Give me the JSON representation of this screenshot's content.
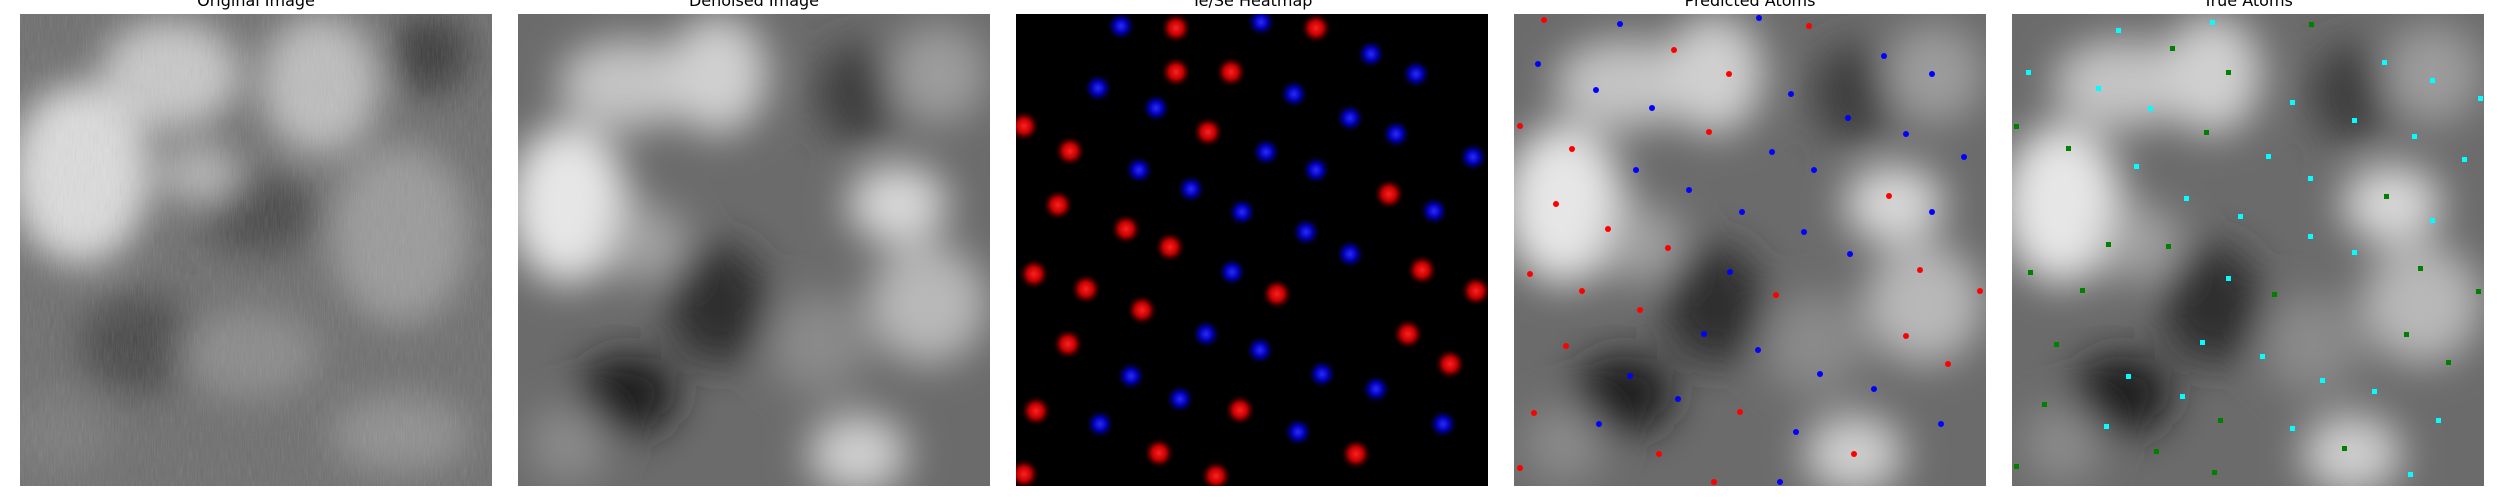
{
  "panels": [
    {
      "title": "Original Image",
      "kind": "grayscale-micrograph"
    },
    {
      "title": "Denoised Image",
      "kind": "grayscale-micrograph"
    },
    {
      "title": "Te/Se Heatmap",
      "kind": "heatmap"
    },
    {
      "title": "Predicted Atoms",
      "kind": "overlay"
    },
    {
      "title": "True Atoms",
      "kind": "overlay"
    }
  ],
  "colors": {
    "te_heatmap": "#ff1a1a",
    "se_heatmap": "#1a1aff",
    "predicted_te": "#ff0000",
    "predicted_se": "#0000ff",
    "true_te": "#008000",
    "true_se": "#00ffff"
  }
}
